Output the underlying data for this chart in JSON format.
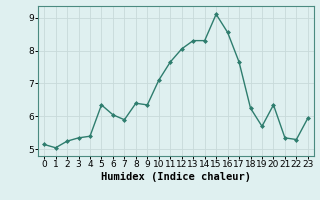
{
  "x": [
    0,
    1,
    2,
    3,
    4,
    5,
    6,
    7,
    8,
    9,
    10,
    11,
    12,
    13,
    14,
    15,
    16,
    17,
    18,
    19,
    20,
    21,
    22,
    23
  ],
  "y": [
    5.15,
    5.05,
    5.25,
    5.35,
    5.4,
    6.35,
    6.05,
    5.9,
    6.4,
    6.35,
    7.1,
    7.65,
    8.05,
    8.3,
    8.3,
    9.1,
    8.55,
    7.65,
    6.25,
    5.7,
    6.35,
    5.35,
    5.3,
    5.95
  ],
  "line_color": "#2e7d6e",
  "marker": "D",
  "marker_size": 2.0,
  "line_width": 1.0,
  "xlabel": "Humidex (Indice chaleur)",
  "xlabel_fontsize": 7.5,
  "xlim": [
    -0.5,
    23.5
  ],
  "ylim": [
    4.8,
    9.35
  ],
  "yticks": [
    5,
    6,
    7,
    8,
    9
  ],
  "xticks": [
    0,
    1,
    2,
    3,
    4,
    5,
    6,
    7,
    8,
    9,
    10,
    11,
    12,
    13,
    14,
    15,
    16,
    17,
    18,
    19,
    20,
    21,
    22,
    23
  ],
  "bg_color": "#dff0f0",
  "grid_color_major": "#c8dada",
  "grid_color_minor": "#e8f4f4",
  "tick_fontsize": 6.5,
  "fig_bg_color": "#dff0f0",
  "spine_color": "#4a8a80"
}
